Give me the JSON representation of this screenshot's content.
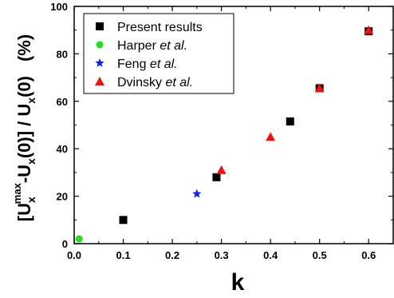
{
  "chart_data": {
    "type": "scatter",
    "xlabel": "k",
    "ylabel": {
      "prefix": "[U",
      "sub1": "x",
      "sup1": "max",
      "mid": "-U",
      "sub2": "x",
      "mid2": "(0)] / U",
      "sub3": "x",
      "suffix": "(0)",
      "unit": "(%)"
    },
    "xlim": [
      0.0,
      0.65
    ],
    "ylim": [
      0,
      100
    ],
    "xticks": [
      "0.0",
      "0.1",
      "0.2",
      "0.3",
      "0.4",
      "0.5",
      "0.6"
    ],
    "xtick_values": [
      0.0,
      0.1,
      0.2,
      0.3,
      0.4,
      0.5,
      0.6
    ],
    "yticks": [
      "0",
      "20",
      "40",
      "60",
      "80",
      "100"
    ],
    "ytick_values": [
      0,
      20,
      40,
      60,
      80,
      100
    ],
    "grid": false,
    "legend_position": "top-left",
    "series": [
      {
        "name": "Present results",
        "name_plain": "Present results",
        "name_italic": "",
        "marker": "square",
        "color": "#000000",
        "x": [
          0.1,
          0.29,
          0.44,
          0.5,
          0.6
        ],
        "y": [
          10,
          28,
          51.5,
          65.5,
          89.5
        ]
      },
      {
        "name": "Harper et al.",
        "name_plain": "Harper ",
        "name_italic": "et al.",
        "marker": "circle",
        "color": "#22dd22",
        "x": [
          0.01
        ],
        "y": [
          2
        ]
      },
      {
        "name": "Feng et al.",
        "name_plain": "Feng ",
        "name_italic": "et al.",
        "marker": "star",
        "color": "#1a1aff",
        "x": [
          0.25
        ],
        "y": [
          21
        ]
      },
      {
        "name": "Dvinsky et al.",
        "name_plain": "Dvinsky ",
        "name_italic": "et al.",
        "marker": "triangle",
        "color": "#ee1111",
        "x": [
          0.3,
          0.4,
          0.5,
          0.6
        ],
        "y": [
          31,
          45,
          65.5,
          90
        ]
      }
    ]
  }
}
